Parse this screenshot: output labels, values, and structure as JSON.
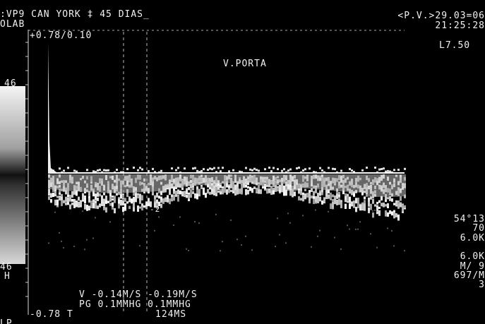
{
  "header": {
    "exam": ":VP9 CAN YORK ‡ 45 DIAS_",
    "site": "OLAB",
    "date": "<P.V.>29.03=06",
    "time": "21:25:28"
  },
  "scale": {
    "top": "+0.78/0.10",
    "bottom": "-0.78 T",
    "left_top": "46",
    "left_bottom": "46",
    "left_unit": "H",
    "cursor": "-2"
  },
  "labels": {
    "vessel": "V.PORTA",
    "probe": "L7.50"
  },
  "right_panel": [
    "54°13",
    "70",
    "6.0K",
    "6.0K",
    "M/ 9",
    "697/M",
    "3"
  ],
  "measurements": {
    "velocity": "V -0.14M/S -0.19M/S",
    "gradient": "PG  0.1MMHG  0.1MMHG",
    "time": "124MS",
    "corner": "LP"
  }
}
